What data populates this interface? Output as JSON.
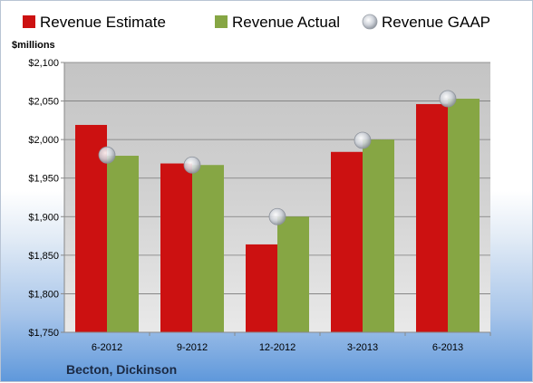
{
  "chart_data": {
    "type": "bar",
    "categories": [
      "6-2012",
      "9-2012",
      "12-2012",
      "3-2013",
      "6-2013"
    ],
    "series": [
      {
        "name": "Revenue Estimate",
        "values": [
          2019,
          1969,
          1864,
          1984,
          2046
        ],
        "color": "#cc1111"
      },
      {
        "name": "Revenue Actual",
        "values": [
          1979,
          1967,
          1900,
          2000,
          2053
        ],
        "color": "#86a644"
      }
    ],
    "markers": {
      "name": "Revenue GAAP",
      "values": [
        1980,
        1967,
        1900,
        1999,
        2053
      ],
      "color": "#c8ccd4"
    },
    "ylabel": "$millions",
    "ylim": [
      1750,
      2100
    ],
    "yticks": [
      1750,
      1800,
      1850,
      1900,
      1950,
      2000,
      2050,
      2100
    ],
    "ytick_labels": [
      "$1,750",
      "$1,800",
      "$1,850",
      "$1,900",
      "$1,950",
      "$2,000",
      "$2,050",
      "$2,100"
    ],
    "grid": true,
    "legend_position": "top",
    "footer": "Becton, Dickinson"
  }
}
